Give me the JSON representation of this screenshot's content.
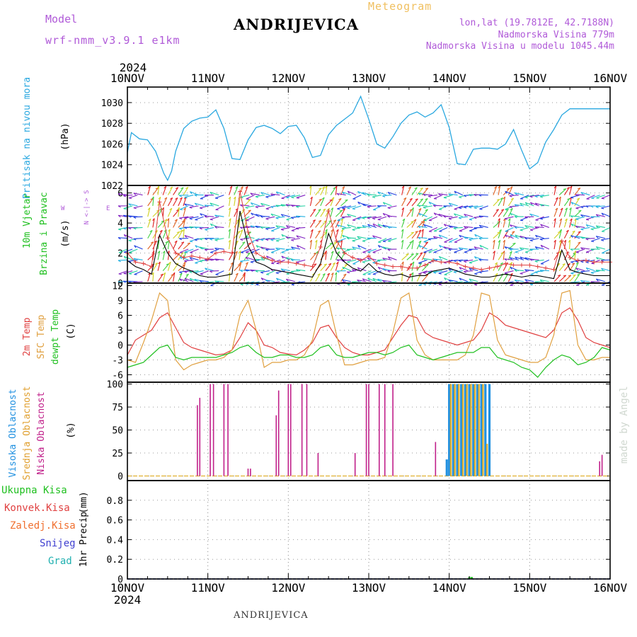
{
  "header": {
    "model_label": "Model",
    "model_version": "wrf-nmm_v3.9.1 e1km",
    "title": "ANDRIJEVICA",
    "meteogram": "Meteogram",
    "lonlat": "lon,lat (19.7812E, 42.7188N)",
    "elev": "Nadmorska Visina 779m",
    "elev_model": "Nadmorska Visina u modelu 1045.44m"
  },
  "footer": {
    "station": "ANDRIJEVICA"
  },
  "watermark": "made by Angel",
  "colors": {
    "pressure": "#2aa8e0",
    "t2m": "#e04040",
    "sfc": "#e0a040",
    "dewpt": "#20c020",
    "high": "#2090e0",
    "mid": "#e0b030",
    "low": "#c0208a",
    "precip": "#20c020",
    "wind_mean": "#000000",
    "gust": "#e04040"
  },
  "chart_data": [
    {
      "type": "line",
      "name": "pressure",
      "ylabel_title": "Pritisak na nivou mora",
      "ylabel_unit": "(hPa)",
      "ylim": [
        1022,
        1031.5
      ],
      "yticks": [
        "1022",
        "1024",
        "1026",
        "1028",
        "1030"
      ],
      "grid": true,
      "series": [
        {
          "name": "pressure",
          "x": [
            0,
            0.05,
            0.15,
            0.25,
            0.35,
            0.45,
            0.5,
            0.55,
            0.6,
            0.7,
            0.8,
            0.9,
            1.0,
            1.1,
            1.2,
            1.3,
            1.4,
            1.5,
            1.6,
            1.7,
            1.8,
            1.9,
            2.0,
            2.1,
            2.2,
            2.3,
            2.4,
            2.5,
            2.6,
            2.7,
            2.8,
            2.9,
            3.0,
            3.1,
            3.2,
            3.3,
            3.4,
            3.5,
            3.6,
            3.7,
            3.8,
            3.9,
            4.0,
            4.1,
            4.2,
            4.3,
            4.4,
            4.5,
            4.6,
            4.7,
            4.8,
            4.9,
            5.0,
            5.1,
            5.2,
            5.3,
            5.4,
            5.5,
            5.6,
            5.7,
            5.8,
            5.9,
            6.0
          ],
          "values": [
            1025.2,
            1027.1,
            1026.5,
            1026.4,
            1025.3,
            1023.2,
            1022.5,
            1023.4,
            1025.3,
            1027.5,
            1028.2,
            1028.5,
            1028.6,
            1029.3,
            1027.5,
            1024.6,
            1024.5,
            1026.4,
            1027.6,
            1027.8,
            1027.5,
            1027.0,
            1027.7,
            1027.8,
            1026.6,
            1024.7,
            1024.9,
            1026.9,
            1027.8,
            1028.4,
            1029.0,
            1030.6,
            1028.4,
            1026.0,
            1025.6,
            1026.7,
            1028.0,
            1028.8,
            1029.1,
            1028.6,
            1029.0,
            1029.8,
            1027.6,
            1024.1,
            1024.0,
            1025.5,
            1025.6,
            1025.6,
            1025.5,
            1026.0,
            1027.4,
            1025.4,
            1023.6,
            1024.2,
            1026.2,
            1027.4,
            1028.8,
            1029.4,
            1029.4,
            1029.4,
            1029.4,
            1029.4,
            1029.4
          ]
        }
      ]
    },
    {
      "type": "line",
      "name": "wind",
      "ylabel_title": "10m Vjetar",
      "ylabel_title2": "Brzina i Pravac",
      "ylabel_unit": "(m/s)",
      "compass": "W <-|-> E",
      "compass_ns": "N <-|-> S",
      "ylim": [
        0,
        6.5
      ],
      "yticks": [
        "0",
        "2",
        "4",
        "6"
      ],
      "grid": true,
      "series": [
        {
          "name": "mean",
          "x": [
            0,
            0.1,
            0.2,
            0.3,
            0.4,
            0.5,
            0.6,
            0.7,
            0.8,
            0.9,
            1.0,
            1.1,
            1.2,
            1.3,
            1.4,
            1.5,
            1.6,
            1.7,
            1.8,
            1.9,
            2.0,
            2.1,
            2.2,
            2.3,
            2.4,
            2.5,
            2.6,
            2.7,
            2.8,
            2.9,
            3.0,
            3.1,
            3.2,
            3.3,
            3.4,
            3.5,
            3.6,
            3.7,
            3.8,
            3.9,
            4.0,
            4.1,
            4.2,
            4.3,
            4.4,
            4.5,
            4.6,
            4.7,
            4.8,
            4.9,
            5.0,
            5.1,
            5.2,
            5.3,
            5.4,
            5.5,
            5.6,
            5.7,
            5.8,
            5.9,
            6.0
          ],
          "values": [
            1.5,
            1.1,
            0.9,
            0.6,
            3.2,
            2.0,
            1.3,
            1.0,
            0.8,
            0.5,
            0.4,
            0.4,
            0.5,
            0.6,
            4.8,
            2.5,
            1.4,
            1.2,
            0.9,
            0.8,
            0.7,
            0.6,
            0.5,
            0.4,
            1.3,
            3.3,
            2.0,
            1.4,
            1.0,
            0.8,
            1.3,
            0.8,
            0.6,
            0.5,
            0.6,
            0.4,
            0.5,
            0.5,
            0.8,
            0.9,
            1.0,
            0.8,
            0.6,
            0.5,
            0.4,
            0.4,
            0.5,
            0.6,
            0.5,
            0.4,
            0.5,
            0.5,
            0.4,
            0.3,
            2.2,
            0.9,
            0.7,
            0.6,
            0.5,
            0.5,
            0.5
          ]
        },
        {
          "name": "gust",
          "x": [
            0,
            0.1,
            0.2,
            0.3,
            0.4,
            0.5,
            0.6,
            0.7,
            0.8,
            0.9,
            1.0,
            1.1,
            1.2,
            1.3,
            1.4,
            1.5,
            1.6,
            1.7,
            1.8,
            1.9,
            2.0,
            2.1,
            2.2,
            2.3,
            2.4,
            2.5,
            2.6,
            2.7,
            2.8,
            2.9,
            3.0,
            3.1,
            3.2,
            3.3,
            3.4,
            3.5,
            3.6,
            3.7,
            3.8,
            3.9,
            4.0,
            4.1,
            4.2,
            4.3,
            4.4,
            4.5,
            4.6,
            4.7,
            4.8,
            4.9,
            5.0,
            5.1,
            5.2,
            5.3,
            5.4,
            5.5,
            5.6,
            5.7,
            5.8,
            5.9,
            6.0
          ],
          "values": [
            2.0,
            1.4,
            1.3,
            1.1,
            5.4,
            3.0,
            2.0,
            1.7,
            1.8,
            1.7,
            1.6,
            2.0,
            2.1,
            2.0,
            6.1,
            3.4,
            2.0,
            1.7,
            1.5,
            1.4,
            1.4,
            1.3,
            1.2,
            1.1,
            2.4,
            4.8,
            2.8,
            2.0,
            1.7,
            1.5,
            1.8,
            1.3,
            1.2,
            1.1,
            1.1,
            1.0,
            1.0,
            1.2,
            1.5,
            1.4,
            1.4,
            1.3,
            1.1,
            1.0,
            0.9,
            1.0,
            1.1,
            1.3,
            1.2,
            1.2,
            1.2,
            1.1,
            1.0,
            0.9,
            2.8,
            1.7,
            1.5,
            1.5,
            1.4,
            1.4,
            1.4
          ]
        }
      ],
      "bands": [
        [
          0.25,
          0.7
        ],
        [
          1.25,
          1.5
        ],
        [
          2.25,
          2.7
        ],
        [
          3.4,
          3.7
        ],
        [
          4.5,
          4.8
        ],
        [
          5.3,
          5.6
        ]
      ]
    },
    {
      "type": "line",
      "name": "temperature",
      "ylabel_title": "2m Temp",
      "ylabel_title2": "SFC Temp",
      "ylabel_title3": "dewpt Temp",
      "ylabel_unit": "(C)",
      "ylim": [
        -7.5,
        12.5
      ],
      "yticks": [
        "-6",
        "-3",
        "0",
        "3",
        "6",
        "9",
        "12"
      ],
      "grid": true,
      "series": [
        {
          "name": "2m",
          "x": [
            0,
            0.1,
            0.2,
            0.3,
            0.4,
            0.5,
            0.6,
            0.7,
            0.8,
            0.9,
            1.0,
            1.1,
            1.2,
            1.3,
            1.4,
            1.5,
            1.6,
            1.7,
            1.8,
            1.9,
            2.0,
            2.1,
            2.2,
            2.3,
            2.4,
            2.5,
            2.6,
            2.7,
            2.8,
            2.9,
            3.0,
            3.1,
            3.2,
            3.3,
            3.4,
            3.5,
            3.6,
            3.7,
            3.8,
            3.9,
            4.0,
            4.1,
            4.2,
            4.3,
            4.4,
            4.5,
            4.6,
            4.7,
            4.8,
            4.9,
            5.0,
            5.1,
            5.2,
            5.3,
            5.4,
            5.5,
            5.6,
            5.7,
            5.8,
            5.9,
            6.0
          ],
          "values": [
            -2.0,
            1.0,
            2.0,
            3.0,
            5.5,
            6.5,
            3.5,
            0.5,
            -0.5,
            -1.0,
            -1.5,
            -2.0,
            -1.8,
            -1.0,
            1.5,
            4.5,
            3.0,
            0.0,
            -0.5,
            -1.5,
            -1.8,
            -2.0,
            -1.0,
            0.5,
            3.5,
            4.0,
            1.5,
            -0.5,
            -1.5,
            -2.0,
            -2.0,
            -1.5,
            -1.0,
            1.5,
            4.0,
            6.0,
            5.5,
            2.5,
            1.5,
            1.0,
            0.5,
            0.0,
            0.5,
            1.0,
            3.0,
            6.5,
            5.5,
            4.0,
            3.5,
            3.0,
            2.5,
            2.0,
            1.5,
            3.0,
            6.5,
            7.5,
            5.0,
            1.5,
            0.5,
            0.0,
            -0.5
          ]
        },
        {
          "name": "sfc",
          "x": [
            0,
            0.1,
            0.2,
            0.3,
            0.4,
            0.5,
            0.6,
            0.7,
            0.8,
            0.9,
            1.0,
            1.1,
            1.2,
            1.3,
            1.4,
            1.5,
            1.6,
            1.7,
            1.8,
            1.9,
            2.0,
            2.1,
            2.2,
            2.3,
            2.4,
            2.5,
            2.6,
            2.7,
            2.8,
            2.9,
            3.0,
            3.1,
            3.2,
            3.3,
            3.4,
            3.5,
            3.6,
            3.7,
            3.8,
            3.9,
            4.0,
            4.1,
            4.2,
            4.3,
            4.4,
            4.5,
            4.6,
            4.7,
            4.8,
            4.9,
            5.0,
            5.1,
            5.2,
            5.3,
            5.4,
            5.5,
            5.6,
            5.7,
            5.8,
            5.9,
            6.0
          ],
          "values": [
            -3.0,
            -3.5,
            0.5,
            5.0,
            10.5,
            9.0,
            -3.0,
            -5.0,
            -4.0,
            -3.5,
            -3.0,
            -3.0,
            -2.5,
            -1.0,
            6.0,
            9.0,
            3.0,
            -4.5,
            -3.5,
            -3.5,
            -3.0,
            -3.0,
            -2.0,
            1.0,
            8.0,
            9.0,
            2.0,
            -4.0,
            -4.0,
            -3.5,
            -3.0,
            -3.0,
            -2.5,
            2.5,
            9.5,
            10.5,
            1.0,
            -2.0,
            -3.0,
            -3.0,
            -3.0,
            -3.0,
            -2.0,
            2.0,
            10.5,
            10.0,
            1.0,
            -2.0,
            -2.5,
            -3.0,
            -3.5,
            -3.5,
            -2.5,
            2.0,
            10.5,
            11.0,
            0.0,
            -3.0,
            -3.0,
            -2.5,
            -2.5
          ]
        },
        {
          "name": "dewpt",
          "x": [
            0,
            0.1,
            0.2,
            0.3,
            0.4,
            0.5,
            0.6,
            0.7,
            0.8,
            0.9,
            1.0,
            1.1,
            1.2,
            1.3,
            1.4,
            1.5,
            1.6,
            1.7,
            1.8,
            1.9,
            2.0,
            2.1,
            2.2,
            2.3,
            2.4,
            2.5,
            2.6,
            2.7,
            2.8,
            2.9,
            3.0,
            3.1,
            3.2,
            3.3,
            3.4,
            3.5,
            3.6,
            3.7,
            3.8,
            3.9,
            4.0,
            4.1,
            4.2,
            4.3,
            4.4,
            4.5,
            4.6,
            4.7,
            4.8,
            4.9,
            5.0,
            5.1,
            5.2,
            5.3,
            5.4,
            5.5,
            5.6,
            5.7,
            5.8,
            5.9,
            6.0
          ],
          "values": [
            -4.5,
            -4.0,
            -3.5,
            -2.0,
            -0.5,
            0.0,
            -2.5,
            -3.0,
            -2.5,
            -2.5,
            -2.5,
            -2.5,
            -2.0,
            -1.5,
            -0.5,
            0.0,
            -1.5,
            -2.5,
            -2.5,
            -2.0,
            -2.0,
            -2.5,
            -2.5,
            -2.0,
            -0.5,
            0.0,
            -2.0,
            -2.5,
            -2.5,
            -2.0,
            -1.5,
            -1.5,
            -2.0,
            -1.5,
            -0.5,
            0.0,
            -2.0,
            -2.5,
            -3.0,
            -2.5,
            -2.0,
            -1.5,
            -1.5,
            -1.5,
            -0.5,
            -0.5,
            -2.5,
            -3.0,
            -3.5,
            -4.5,
            -5.0,
            -6.5,
            -4.5,
            -3.0,
            -2.0,
            -2.5,
            -4.0,
            -3.5,
            -2.5,
            -0.5,
            -1.0
          ]
        }
      ]
    },
    {
      "type": "bar",
      "name": "cloud",
      "ylabel_title": "Visoka Oblacnost",
      "ylabel_title2": "Srednja Oblacnost",
      "ylabel_title3": "Niska Oblacnost",
      "ylabel_unit": "(%)",
      "ylim": [
        -5,
        102
      ],
      "yticks": [
        "0",
        "25",
        "50",
        "75",
        "100"
      ],
      "grid": true,
      "low_bars": [
        [
          0.87,
          77
        ],
        [
          0.9,
          85
        ],
        [
          1.03,
          100
        ],
        [
          1.07,
          100
        ],
        [
          1.2,
          100
        ],
        [
          1.25,
          100
        ],
        [
          1.5,
          8
        ],
        [
          1.53,
          8
        ],
        [
          1.85,
          66
        ],
        [
          1.88,
          93
        ],
        [
          2.0,
          100
        ],
        [
          2.03,
          100
        ],
        [
          2.17,
          100
        ],
        [
          2.23,
          100
        ],
        [
          2.37,
          25
        ],
        [
          2.83,
          25
        ],
        [
          2.97,
          100
        ],
        [
          3.0,
          100
        ],
        [
          3.13,
          100
        ],
        [
          3.2,
          100
        ],
        [
          3.3,
          100
        ],
        [
          3.83,
          37
        ],
        [
          5.87,
          16
        ],
        [
          5.9,
          23
        ]
      ],
      "high_bars": [
        [
          3.97,
          18
        ],
        [
          4.0,
          100
        ],
        [
          4.05,
          100
        ],
        [
          4.1,
          100
        ],
        [
          4.15,
          100
        ],
        [
          4.2,
          100
        ],
        [
          4.25,
          100
        ],
        [
          4.3,
          100
        ],
        [
          4.35,
          100
        ],
        [
          4.4,
          100
        ],
        [
          4.45,
          100
        ],
        [
          4.5,
          100
        ]
      ],
      "mid_bars": [
        [
          4.02,
          100
        ],
        [
          4.07,
          100
        ],
        [
          4.12,
          100
        ],
        [
          4.17,
          100
        ],
        [
          4.22,
          100
        ],
        [
          4.27,
          100
        ],
        [
          4.32,
          100
        ],
        [
          4.37,
          100
        ],
        [
          4.42,
          100
        ],
        [
          4.47,
          35
        ]
      ]
    },
    {
      "type": "bar",
      "name": "precip",
      "ylabel_title": "1hr Precip",
      "ylabel_unit": "(mm)",
      "legend": [
        "Ukupna Kisa",
        "Konvek.Kisa",
        "Zaledj.Kisa",
        "Snijeg",
        "Grad"
      ],
      "legend_colors": [
        "#20c020",
        "#e04040",
        "#f07030",
        "#4040d0",
        "#20b0b0"
      ],
      "ylim": [
        0,
        1
      ],
      "yticks": [
        "0",
        "0.2",
        "0.4",
        "0.6",
        "0.8"
      ],
      "grid": true,
      "bars": [
        [
          4.25,
          0.02
        ],
        [
          4.28,
          0.02
        ]
      ]
    }
  ],
  "xaxis": {
    "top_year": "2024",
    "bottom_year": "2024",
    "ticks": [
      "10NOV",
      "11NOV",
      "12NOV",
      "13NOV",
      "14NOV",
      "15NOV",
      "16NOV"
    ],
    "range": [
      0,
      6
    ]
  }
}
